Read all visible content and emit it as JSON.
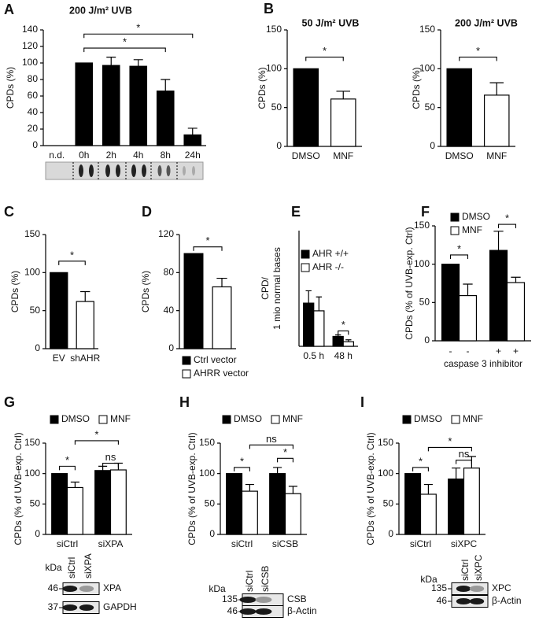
{
  "chart_data": [
    {
      "panel": "A",
      "type": "bar",
      "title": "200 J/m² UVB",
      "ylabel": "CPDs (%)",
      "categories": [
        "n.d.",
        "0h",
        "2h",
        "4h",
        "8h",
        "24h"
      ],
      "values": [
        null,
        100,
        97,
        96,
        66,
        13
      ],
      "errors": [
        null,
        null,
        10,
        8,
        14,
        8
      ],
      "color": "#000000",
      "ylim": [
        0,
        140
      ],
      "yticks": [
        0,
        20,
        40,
        60,
        80,
        100,
        120,
        140
      ],
      "annotations": [
        "*",
        "*"
      ]
    },
    {
      "panel": "B",
      "type": "bar",
      "title": "50 J/m² UVB",
      "ylabel": "CPDs (%)",
      "categories": [
        "DMSO",
        "MNF"
      ],
      "values": [
        100,
        61
      ],
      "errors": [
        null,
        10
      ],
      "colors": [
        "#000000",
        "#ffffff"
      ],
      "ylim": [
        0,
        150
      ],
      "yticks": [
        0,
        50,
        100,
        150
      ],
      "annotations": [
        "*"
      ]
    },
    {
      "type": "bar",
      "title": "200 J/m² UVB",
      "ylabel": "CPDs (%)",
      "categories": [
        "DMSO",
        "MNF"
      ],
      "values": [
        100,
        66
      ],
      "errors": [
        null,
        16
      ],
      "colors": [
        "#000000",
        "#ffffff"
      ],
      "ylim": [
        0,
        150
      ],
      "yticks": [
        0,
        50,
        100,
        150
      ],
      "annotations": [
        "*"
      ]
    },
    {
      "panel": "C",
      "type": "bar",
      "ylabel": "CPDs (%)",
      "categories": [
        "EV",
        "shAHR"
      ],
      "values": [
        100,
        62
      ],
      "errors": [
        null,
        13
      ],
      "colors": [
        "#000000",
        "#ffffff"
      ],
      "ylim": [
        0,
        150
      ],
      "yticks": [
        0,
        50,
        100,
        150
      ],
      "annotations": [
        "*"
      ]
    },
    {
      "panel": "D",
      "type": "bar",
      "ylabel": "CPDs (%)",
      "legend": true,
      "categories": [
        "Ctrl vector",
        "AHRR vector"
      ],
      "values": [
        100,
        65
      ],
      "errors": [
        null,
        9
      ],
      "colors": [
        "#000000",
        "#ffffff"
      ],
      "ylim": [
        0,
        120
      ],
      "yticks": [
        0,
        40,
        80,
        120
      ],
      "annotations": [
        "*"
      ]
    },
    {
      "panel": "E",
      "type": "grouped-bar",
      "ylabel": [
        "CPD/",
        "1 mio normal bases"
      ],
      "categories": [
        "0.5 h",
        "48 h"
      ],
      "series": [
        {
          "name": "AHR +/+",
          "color": "#000000",
          "values": [
            140,
            32
          ],
          "errors": [
            40,
            5
          ]
        },
        {
          "name": "AHR -/-",
          "color": "#ffffff",
          "values": [
            115,
            15
          ],
          "errors": [
            45,
            6
          ]
        }
      ],
      "ylim": [
        0,
        375
      ],
      "annotations": [
        "*"
      ]
    },
    {
      "panel": "F",
      "type": "grouped-bar",
      "ylabel": "CPDs (% of UVB-exp. Ctrl)",
      "xlabel": "caspase 3 inhibitor",
      "categories": [
        "-",
        "+"
      ],
      "series": [
        {
          "name": "DMSO",
          "color": "#000000",
          "values": [
            100,
            118
          ],
          "errors": [
            null,
            25
          ]
        },
        {
          "name": "MNF",
          "color": "#ffffff",
          "values": [
            59,
            76
          ],
          "errors": [
            15,
            7
          ]
        }
      ],
      "ylim": [
        0,
        150
      ],
      "yticks": [
        0,
        50,
        100,
        150
      ],
      "annotations": [
        "*",
        "*"
      ]
    },
    {
      "panel": "G",
      "type": "grouped-bar",
      "ylabel": "CPDs (% of UVB-exp. Ctrl)",
      "categories": [
        "siCtrl",
        "siXPA"
      ],
      "series": [
        {
          "name": "DMSO",
          "color": "#000000",
          "values": [
            100,
            105
          ],
          "errors": [
            null,
            7
          ]
        },
        {
          "name": "MNF",
          "color": "#ffffff",
          "values": [
            77,
            106
          ],
          "errors": [
            9,
            11
          ]
        }
      ],
      "ylim": [
        0,
        150
      ],
      "yticks": [
        0,
        50,
        100,
        150
      ],
      "annotations": [
        "*",
        "ns",
        "*"
      ],
      "blot": {
        "unit": "kDa",
        "lanes": [
          "siCtrl",
          "siXPA"
        ],
        "markers": [
          "46",
          "37"
        ],
        "proteins": [
          "XPA",
          "GAPDH"
        ]
      }
    },
    {
      "panel": "H",
      "type": "grouped-bar",
      "ylabel": "CPDs (% of UVB-exp. Ctrl)",
      "categories": [
        "siCtrl",
        "siCSB"
      ],
      "series": [
        {
          "name": "DMSO",
          "color": "#000000",
          "values": [
            100,
            100
          ],
          "errors": [
            null,
            10
          ]
        },
        {
          "name": "MNF",
          "color": "#ffffff",
          "values": [
            71,
            67
          ],
          "errors": [
            11,
            12
          ]
        }
      ],
      "ylim": [
        0,
        150
      ],
      "yticks": [
        0,
        50,
        100,
        150
      ],
      "annotations": [
        "*",
        "*",
        "ns"
      ],
      "blot": {
        "unit": "kDa",
        "lanes": [
          "siCtrl",
          "siCSB"
        ],
        "markers": [
          "135",
          "46"
        ],
        "proteins": [
          "CSB",
          "β-Actin"
        ]
      }
    },
    {
      "panel": "I",
      "type": "grouped-bar",
      "ylabel": "CPDs (% of UVB-exp. Ctrl)",
      "categories": [
        "siCtrl",
        "siXPC"
      ],
      "series": [
        {
          "name": "DMSO",
          "color": "#000000",
          "values": [
            100,
            91
          ],
          "errors": [
            null,
            18
          ]
        },
        {
          "name": "MNF",
          "color": "#ffffff",
          "values": [
            66,
            109
          ],
          "errors": [
            16,
            19
          ]
        }
      ],
      "ylim": [
        0,
        150
      ],
      "yticks": [
        0,
        50,
        100,
        150
      ],
      "annotations": [
        "*",
        "ns",
        "*"
      ],
      "blot": {
        "unit": "kDa",
        "lanes": [
          "siCtrl",
          "siXPC"
        ],
        "markers": [
          "135",
          "46"
        ],
        "proteins": [
          "XPC",
          "β-Actin"
        ]
      }
    }
  ]
}
